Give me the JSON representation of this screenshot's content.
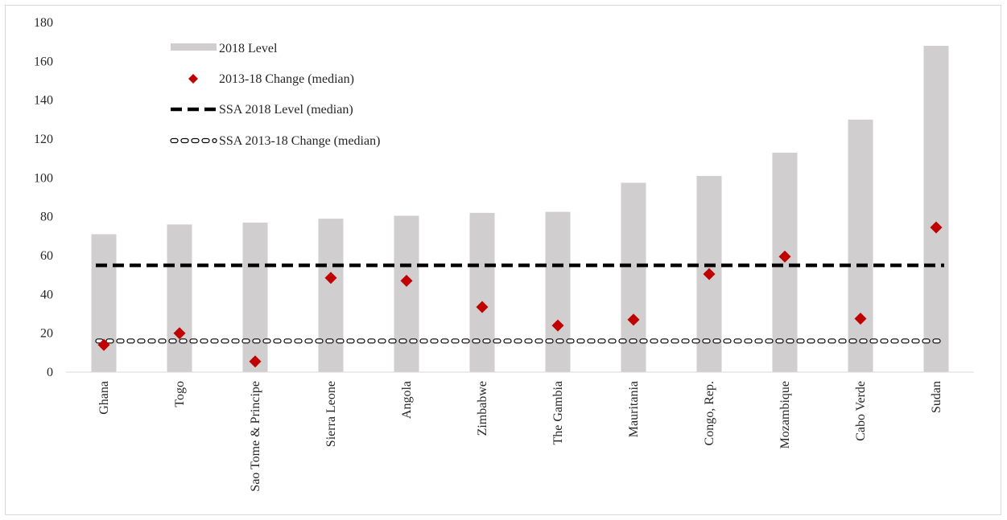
{
  "chart_data": {
    "type": "bar",
    "title": "",
    "xlabel": "",
    "ylabel": "",
    "ylim": [
      0,
      180
    ],
    "yticks": [
      0,
      20,
      40,
      60,
      80,
      100,
      120,
      140,
      160,
      180
    ],
    "grid": false,
    "legend_position": "top-left",
    "categories": [
      "Ghana",
      "Togo",
      "Sao Tome & Principe",
      "Sierra Leone",
      "Angola",
      "Zimbabwe",
      "The Gambia",
      "Mauritania",
      "Congo, Rep.",
      "Mozambique",
      "Cabo Verde",
      "Sudan"
    ],
    "series": [
      {
        "name": "2018 Level",
        "kind": "bar",
        "color": "#d0cece",
        "values": [
          71,
          76,
          77,
          79,
          80.5,
          82,
          82.5,
          97.5,
          101,
          113,
          130,
          168
        ]
      },
      {
        "name": "2013-18 Change (median)",
        "kind": "marker",
        "color": "#c00000",
        "values": [
          14,
          20,
          5.5,
          48.5,
          47,
          33.5,
          24,
          27,
          50.5,
          59.5,
          27.5,
          74.5
        ]
      },
      {
        "name": "SSA 2018 Level (median)",
        "kind": "hline",
        "color": "#000000",
        "style": "dashed-heavy",
        "value": 55
      },
      {
        "name": "SSA 2013-18 Change (median)",
        "kind": "hline",
        "color": "#000000",
        "style": "dashed-hollow",
        "value": 16
      }
    ]
  }
}
